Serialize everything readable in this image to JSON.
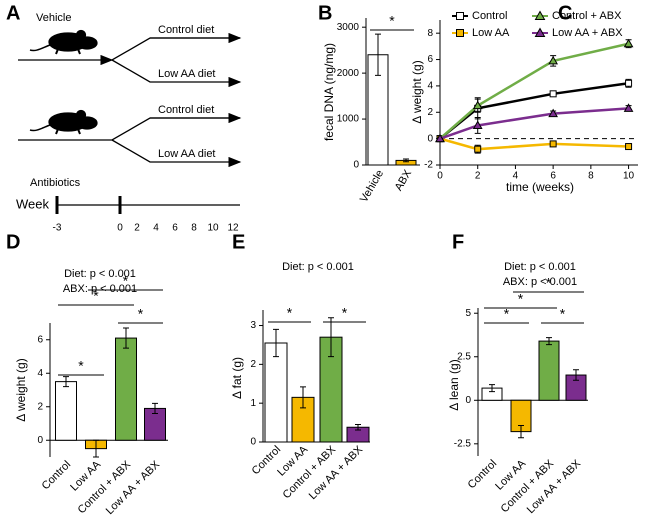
{
  "diagram": {
    "panel": "A",
    "groups": [
      {
        "label": "Vehicle",
        "branches": [
          "Control diet",
          "Low AA diet"
        ]
      },
      {
        "label": "Antibiotics",
        "branches": [
          "Control diet",
          "Low AA diet"
        ]
      }
    ],
    "timeline": {
      "label": "Week",
      "ticks": [
        "-3",
        "0",
        "2",
        "4",
        "6",
        "8",
        "10",
        "12"
      ]
    }
  },
  "chart_data": [
    {
      "type": "bar",
      "panel": "B",
      "ylabel": "fecal DNA (ng/mg)",
      "categories": [
        "Vehicle",
        "ABX"
      ],
      "values": [
        2400,
        100
      ],
      "errors": [
        450,
        30
      ],
      "colors": [
        "#ffffff",
        "#f5b800"
      ],
      "ylim": [
        0,
        3200
      ],
      "yticks": [
        0,
        1000,
        2000,
        3000
      ],
      "annotations": [
        {
          "text": "*",
          "between": [
            0,
            1
          ]
        }
      ]
    },
    {
      "type": "line",
      "panel": "C",
      "xlabel": "time (weeks)",
      "ylabel": "Δ weight (g)",
      "x": [
        0,
        2,
        6,
        10
      ],
      "xlim": [
        0,
        10.5
      ],
      "xticks": [
        0,
        2,
        4,
        6,
        8,
        10
      ],
      "ylim": [
        -2,
        9
      ],
      "yticks": [
        -2,
        0,
        2,
        4,
        6,
        8
      ],
      "zero_line": true,
      "series": [
        {
          "name": "Control",
          "color": "#000000",
          "marker": "square",
          "values": [
            0,
            2.3,
            3.4,
            4.2
          ],
          "errors": [
            0,
            0.8,
            0.2,
            0.3
          ]
        },
        {
          "name": "Low AA",
          "color": "#f5b800",
          "marker": "square",
          "values": [
            0,
            -0.8,
            -0.4,
            -0.6
          ],
          "errors": [
            0,
            0.3,
            0.2,
            0.1
          ]
        },
        {
          "name": "Control + ABX",
          "color": "#70ad47",
          "marker": "triangle",
          "values": [
            0,
            2.5,
            5.9,
            7.2
          ],
          "errors": [
            0,
            0.5,
            0.4,
            0.3
          ]
        },
        {
          "name": "Low AA + ABX",
          "color": "#7b2d8e",
          "marker": "triangle",
          "values": [
            0,
            1.0,
            1.9,
            2.3
          ],
          "errors": [
            0,
            0.6,
            0.2,
            0.2
          ]
        }
      ]
    },
    {
      "type": "bar",
      "panel": "D",
      "subtitle": [
        "Diet: p < 0.001",
        "ABX: p < 0.001"
      ],
      "ylabel": "Δ weight (g)",
      "categories": [
        "Control",
        "Low AA",
        "Control + ABX",
        "Low AA + ABX"
      ],
      "values": [
        3.5,
        -0.5,
        6.1,
        1.9
      ],
      "errors": [
        0.3,
        0.5,
        0.6,
        0.3
      ],
      "colors": [
        "#ffffff",
        "#f5b800",
        "#70ad47",
        "#7b2d8e"
      ],
      "ylim": [
        -1,
        7
      ],
      "yticks": [
        0,
        2,
        4,
        6
      ],
      "annotations": [
        {
          "text": "*",
          "between": [
            0,
            1
          ]
        },
        {
          "text": "*",
          "between": [
            0,
            2
          ]
        },
        {
          "text": "*",
          "between": [
            1,
            3
          ]
        },
        {
          "text": "*",
          "between": [
            2,
            3
          ]
        }
      ]
    },
    {
      "type": "bar",
      "panel": "E",
      "subtitle": [
        "Diet: p < 0.001"
      ],
      "ylabel": "Δ fat (g)",
      "categories": [
        "Control",
        "Low AA",
        "Control + ABX",
        "Low AA + ABX"
      ],
      "values": [
        2.55,
        1.15,
        2.7,
        0.38
      ],
      "errors": [
        0.35,
        0.27,
        0.5,
        0.07
      ],
      "colors": [
        "#ffffff",
        "#f5b800",
        "#70ad47",
        "#7b2d8e"
      ],
      "ylim": [
        0,
        3.4
      ],
      "yticks": [
        0,
        1,
        2,
        3
      ],
      "annotations": [
        {
          "text": "*",
          "between": [
            0,
            1
          ]
        },
        {
          "text": "*",
          "between": [
            2,
            3
          ]
        }
      ]
    },
    {
      "type": "bar",
      "panel": "F",
      "subtitle": [
        "Diet: p < 0.001",
        "ABX: p < 0.001"
      ],
      "ylabel": "Δ lean (g)",
      "categories": [
        "Control",
        "Low AA",
        "Control + ABX",
        "Low AA + ABX"
      ],
      "values": [
        0.7,
        -1.8,
        3.4,
        1.45
      ],
      "errors": [
        0.2,
        0.35,
        0.2,
        0.3
      ],
      "colors": [
        "#ffffff",
        "#f5b800",
        "#70ad47",
        "#7b2d8e"
      ],
      "ylim": [
        -3.2,
        5.3
      ],
      "yticks": [
        -2.5,
        0,
        2.5,
        5
      ],
      "annotations": [
        {
          "text": "*",
          "between": [
            0,
            1
          ]
        },
        {
          "text": "*",
          "between": [
            0,
            2
          ]
        },
        {
          "text": "*",
          "between": [
            1,
            3
          ]
        },
        {
          "text": "*",
          "between": [
            2,
            3
          ]
        }
      ]
    }
  ]
}
